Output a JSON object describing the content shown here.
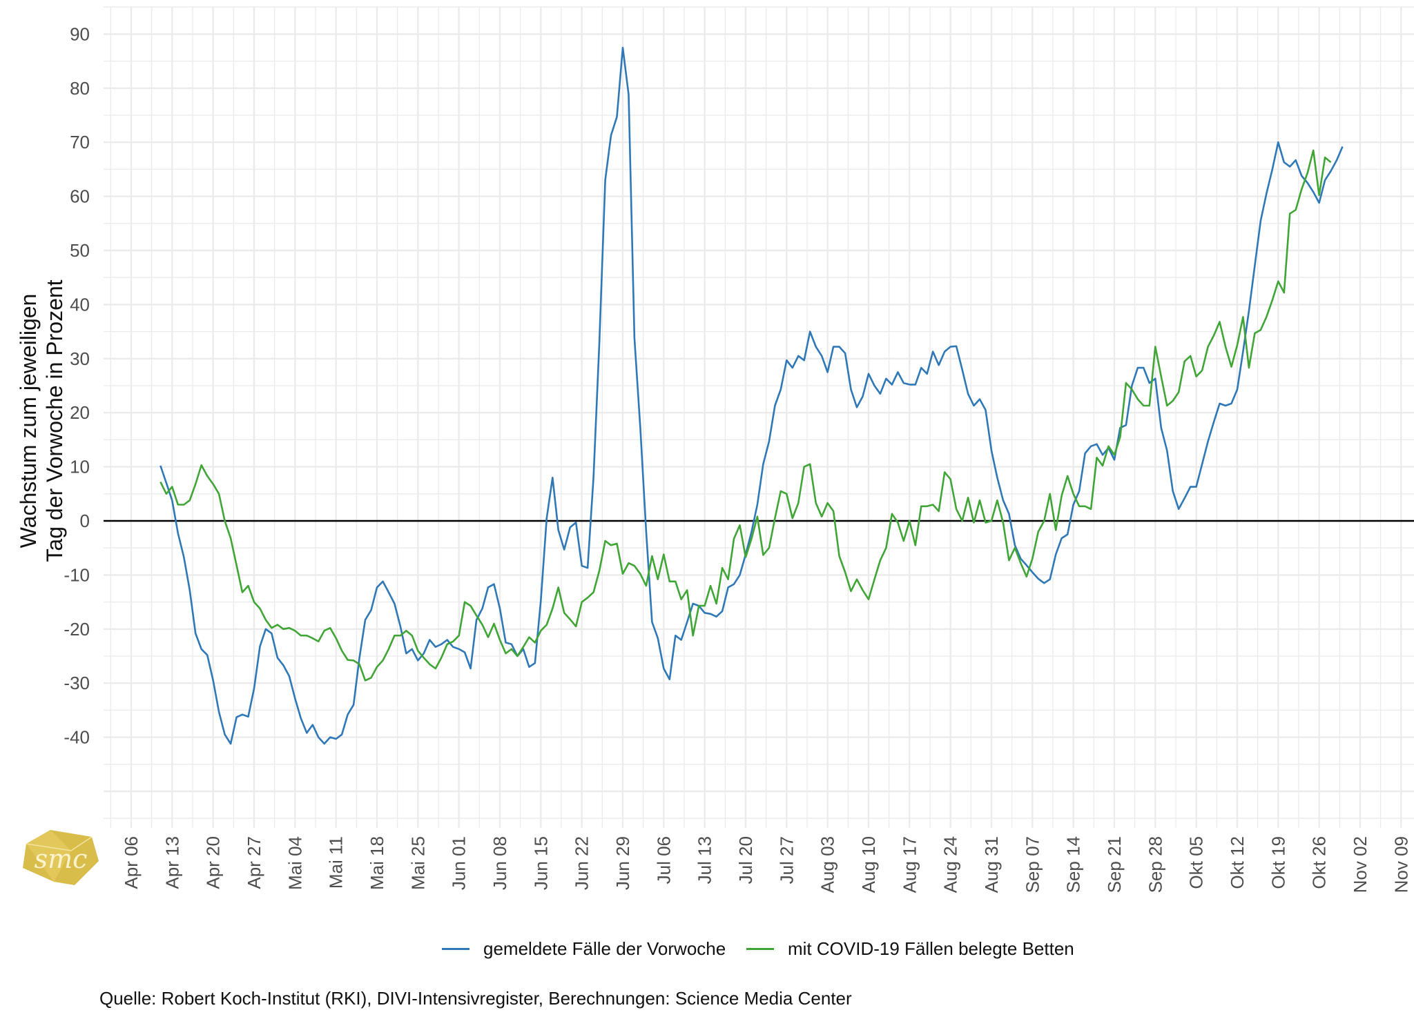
{
  "chart_data": {
    "type": "line",
    "title": "",
    "xlabel": "",
    "ylabel": [
      "Wachstum zum jeweiligen",
      "Tag der Vorwoche in Prozent"
    ],
    "ylim": [
      -57,
      97
    ],
    "yticks": [
      90,
      80,
      70,
      60,
      50,
      40,
      30,
      20,
      10,
      0,
      -10,
      -20,
      -30,
      -40
    ],
    "ytick_labels": [
      "90",
      "80",
      "70",
      "60",
      "50",
      "40",
      "30",
      "20",
      "10",
      "0",
      "-10",
      "-20",
      "-30",
      "-40"
    ],
    "x_unit": "days since Apr 06",
    "xlim": [
      -3,
      219
    ],
    "xticks": [
      0,
      7,
      14,
      21,
      28,
      35,
      42,
      49,
      56,
      63,
      70,
      77,
      84,
      91,
      98,
      105,
      112,
      119,
      126,
      133,
      140,
      147,
      154,
      161,
      168,
      175,
      182,
      189,
      196,
      203,
      210,
      217
    ],
    "xtick_labels": [
      "Apr 06",
      "Apr 13",
      "Apr 20",
      "Apr 27",
      "Mai 04",
      "Mai 11",
      "Mai 18",
      "Mai 25",
      "Jun 01",
      "Jun 08",
      "Jun 15",
      "Jun 22",
      "Jun 29",
      "Jul 06",
      "Jul 13",
      "Jul 20",
      "Jul 27",
      "Aug 03",
      "Aug 10",
      "Aug 17",
      "Aug 24",
      "Aug 31",
      "Sep 07",
      "Sep 14",
      "Sep 21",
      "Sep 28",
      "Okt 05",
      "Okt 12",
      "Okt 19",
      "Okt 26",
      "Nov 02",
      "Nov 09"
    ],
    "reference_line": 0,
    "grid": true,
    "legend_position": "bottom",
    "series": [
      {
        "name": "gemeldete Fälle der Vorwoche",
        "color": "#2e78b7",
        "x_start": 5,
        "values": [
          10.2,
          7.0,
          3.8,
          -2.3,
          -6.7,
          -12.8,
          -20.8,
          -23.7,
          -24.8,
          -29.5,
          -35.3,
          -39.5,
          -41.2,
          -36.3,
          -35.8,
          -36.2,
          -31,
          -23.2,
          -20,
          -20.8,
          -25.3,
          -26.7,
          -28.7,
          -32.8,
          -36.5,
          -39.2,
          -37.7,
          -40,
          -41.2,
          -40,
          -40.3,
          -39.5,
          -35.8,
          -34,
          -25.3,
          -18.3,
          -16.5,
          -12.3,
          -11.2,
          -13.2,
          -15.3,
          -19.5,
          -24.5,
          -23.7,
          -25.8,
          -24.5,
          -22,
          -23.3,
          -22.8,
          -22,
          -23.3,
          -23.7,
          -24.3,
          -27.3,
          -18.3,
          -16.2,
          -12.3,
          -11.7,
          -16.2,
          -22.5,
          -22.8,
          -25,
          -23.7,
          -27,
          -26.3,
          -14.8,
          0.5,
          8,
          -1.7,
          -5.3,
          -1.2,
          -0.3,
          -8.3,
          -8.7,
          8,
          33,
          63,
          71.3,
          74.7,
          87.5,
          78.8,
          33.8,
          17.2,
          -2,
          -18.7,
          -21.7,
          -27.3,
          -29.3,
          -21.2,
          -22,
          -18.7,
          -15.3,
          -15.7,
          -17,
          -17.2,
          -17.7,
          -16.7,
          -12.3,
          -11.7,
          -10,
          -6.2,
          -2,
          3,
          10.5,
          14.7,
          21.3,
          24.3,
          29.7,
          28.3,
          30.5,
          29.7,
          35,
          32.2,
          30.5,
          27.5,
          32.2,
          32.2,
          31,
          24.3,
          21,
          23,
          27.2,
          25,
          23.5,
          26.3,
          25.2,
          27.5,
          25.5,
          25.2,
          25.2,
          28.3,
          27.2,
          31.3,
          28.8,
          31.3,
          32.2,
          32.3,
          28,
          23.5,
          21.3,
          22.5,
          20.5,
          13,
          8,
          3.8,
          1.3,
          -4.5,
          -7,
          -8.2,
          -9.5,
          -10.7,
          -11.5,
          -10.8,
          -6.2,
          -3.2,
          -2.5,
          3,
          5.5,
          12.5,
          13.8,
          14.2,
          12.2,
          13.5,
          11.3,
          17.2,
          17.7,
          25,
          28.3,
          28.3,
          25.5,
          26.3,
          17.2,
          13,
          5.5,
          2.2,
          4.2,
          6.3,
          6.3,
          10.5,
          14.7,
          18.3,
          21.7,
          21.3,
          21.7,
          24.3,
          31.3,
          38.8,
          47.2,
          55.5,
          60.5,
          65,
          70,
          66.3,
          65.5,
          66.7,
          63.8,
          62.5,
          60.8,
          58.8,
          63,
          64.7,
          66.7,
          69.2
        ]
      },
      {
        "name": "mit COVID-19 Fällen belegte Betten",
        "color": "#3fa535",
        "x_start": 5,
        "values": [
          7.2,
          5,
          6.3,
          3,
          3,
          3.8,
          6.8,
          10.3,
          8.3,
          6.8,
          5,
          0,
          -3.2,
          -8.2,
          -13.2,
          -12,
          -15,
          -16.2,
          -18.3,
          -19.8,
          -19.2,
          -20,
          -19.8,
          -20.3,
          -21.2,
          -21.2,
          -21.7,
          -22.3,
          -20.3,
          -19.8,
          -21.7,
          -24,
          -25.7,
          -25.8,
          -26.5,
          -29.5,
          -29,
          -27,
          -25.8,
          -23.7,
          -21.2,
          -21.2,
          -20.3,
          -21.2,
          -24,
          -25.3,
          -26.5,
          -27.3,
          -25.3,
          -22.8,
          -22.3,
          -21.2,
          -15,
          -15.7,
          -17.5,
          -19.2,
          -21.5,
          -19,
          -22,
          -24.5,
          -23.7,
          -25,
          -23.3,
          -21.5,
          -22.5,
          -20.3,
          -19.2,
          -16.2,
          -12.3,
          -17,
          -18.2,
          -19.5,
          -15,
          -14.2,
          -13.2,
          -9.2,
          -3.7,
          -4.5,
          -4.2,
          -9.8,
          -7.8,
          -8.3,
          -9.8,
          -12,
          -6.5,
          -10.8,
          -6.2,
          -11.2,
          -11.2,
          -14.5,
          -12.8,
          -21.2,
          -15.7,
          -15.7,
          -12,
          -15.3,
          -8.7,
          -10.8,
          -3.3,
          -0.8,
          -6.7,
          -3.3,
          0.8,
          -6.3,
          -5,
          0.5,
          5.5,
          5,
          0.5,
          3.3,
          10,
          10.5,
          3.3,
          0.8,
          3.3,
          1.8,
          -6.5,
          -9.5,
          -13,
          -10.8,
          -12.8,
          -14.5,
          -10.8,
          -7.3,
          -5,
          1.3,
          -0.3,
          -3.7,
          0,
          -4.5,
          2.7,
          2.7,
          3,
          1.8,
          9,
          7.7,
          2.2,
          0,
          4.3,
          -0.3,
          3.8,
          -0.3,
          0,
          3.8,
          -0.3,
          -7.3,
          -5,
          -7.8,
          -10.3,
          -7,
          -2,
          0,
          5,
          -1.7,
          4.7,
          8.3,
          5,
          2.7,
          2.7,
          2.2,
          11.7,
          10.2,
          13.8,
          12.2,
          15.5,
          25.5,
          24.3,
          22.5,
          21.3,
          21.3,
          32.2,
          26.7,
          21.3,
          22.2,
          23.8,
          29.5,
          30.5,
          26.7,
          27.8,
          32.2,
          34.3,
          36.8,
          32.2,
          28.5,
          32.5,
          37.7,
          28.3,
          34.7,
          35.3,
          37.7,
          40.8,
          44.3,
          42.2,
          56.8,
          57.5,
          61.3,
          64.3,
          68.5,
          60.2,
          67.2,
          66.3
        ]
      }
    ],
    "caption": "Quelle: Robert Koch-Institut (RKI), DIVI-Intensivregister, Berechnungen: Science Media Center",
    "logo_text": "smc"
  }
}
